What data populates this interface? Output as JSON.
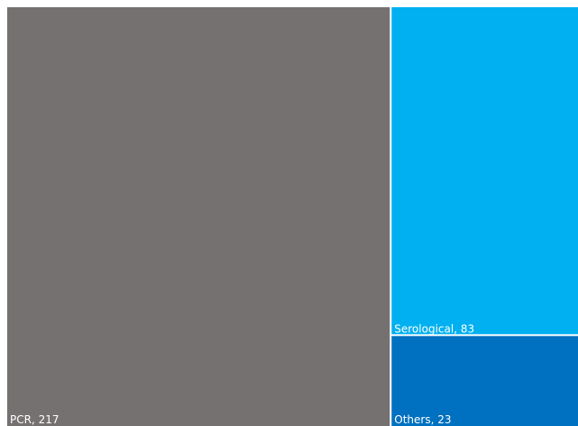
{
  "chart_data": {
    "type": "treemap",
    "labels": [
      "PCR, 217",
      "Serological, 83",
      "Others, 23"
    ],
    "values": [
      217,
      83,
      23
    ],
    "colors": [
      "#767171",
      "#00b0f0",
      "#0070c0"
    ]
  }
}
